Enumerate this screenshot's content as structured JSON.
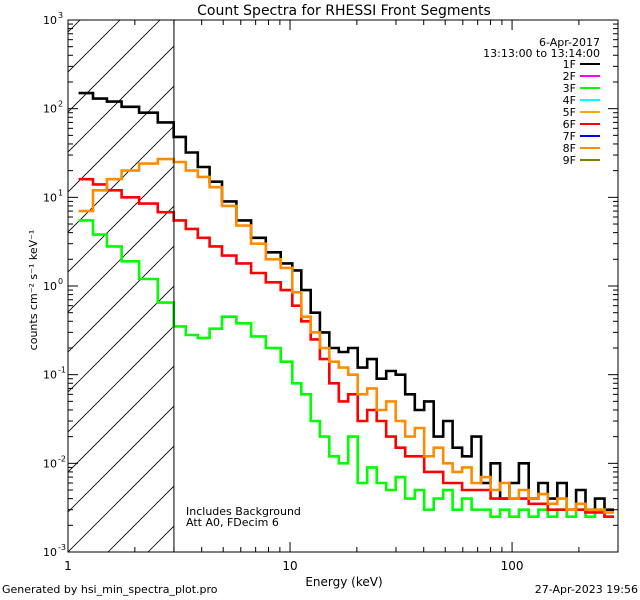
{
  "chart_data": {
    "type": "line",
    "title": "Count Spectra for RHESSI Front Segments",
    "xlabel": "Energy (keV)",
    "ylabel": "counts cm⁻² s⁻¹ keV⁻¹",
    "xscale": "log",
    "yscale": "log",
    "xlim": [
      1,
      300
    ],
    "ylim": [
      0.001,
      1000
    ],
    "x_ticks": [
      {
        "v": 1,
        "label": "1"
      },
      {
        "v": 10,
        "label": "10"
      },
      {
        "v": 100,
        "label": "100"
      }
    ],
    "y_ticks": [
      {
        "v": 0.001,
        "base": "10",
        "exp": "-3"
      },
      {
        "v": 0.01,
        "base": "10",
        "exp": "-2"
      },
      {
        "v": 0.1,
        "base": "10",
        "exp": "-1"
      },
      {
        "v": 1,
        "base": "10",
        "exp": "0"
      },
      {
        "v": 10,
        "base": "10",
        "exp": "1"
      },
      {
        "v": 100,
        "base": "10",
        "exp": "2"
      },
      {
        "v": 1000,
        "base": "10",
        "exp": "3"
      }
    ],
    "date": "6-Apr-2017",
    "time_range": "13:13:00 to 13:14:00",
    "shaded_region": {
      "x_from": 1,
      "x_to": 3
    },
    "annotations": [
      "Includes Background",
      "Att A0, FDecim 6"
    ],
    "legend_position": "top-right",
    "series": [
      {
        "name": "1F",
        "color": "#000000",
        "points": [
          [
            1.2,
            150
          ],
          [
            1.4,
            130
          ],
          [
            1.6,
            120
          ],
          [
            1.9,
            105
          ],
          [
            2.3,
            90
          ],
          [
            2.8,
            70
          ],
          [
            3.2,
            48
          ],
          [
            3.6,
            32
          ],
          [
            4.1,
            22
          ],
          [
            4.6,
            15
          ],
          [
            5.3,
            9
          ],
          [
            6.2,
            5.5
          ],
          [
            7.2,
            3.5
          ],
          [
            8.4,
            2.4
          ],
          [
            9.8,
            1.8
          ],
          [
            10.7,
            1.5
          ],
          [
            11.8,
            0.9
          ],
          [
            13.0,
            0.5
          ],
          [
            14.3,
            0.3
          ],
          [
            15.8,
            0.2
          ],
          [
            17.4,
            0.18
          ],
          [
            19.2,
            0.2
          ],
          [
            21.2,
            0.12
          ],
          [
            23.4,
            0.15
          ],
          [
            25.8,
            0.09
          ],
          [
            28.5,
            0.11
          ],
          [
            31.4,
            0.1
          ],
          [
            34.7,
            0.06
          ],
          [
            38.3,
            0.04
          ],
          [
            42.2,
            0.05
          ],
          [
            46.6,
            0.02
          ],
          [
            51.4,
            0.03
          ],
          [
            56.7,
            0.015
          ],
          [
            62.6,
            0.012
          ],
          [
            69.0,
            0.02
          ],
          [
            76.2,
            0.006
          ],
          [
            84.1,
            0.01
          ],
          [
            92.8,
            0.004
          ],
          [
            102,
            0.006
          ],
          [
            113,
            0.01
          ],
          [
            125,
            0.004
          ],
          [
            138,
            0.006
          ],
          [
            152,
            0.004
          ],
          [
            168,
            0.006
          ],
          [
            185,
            0.003
          ],
          [
            204,
            0.005
          ],
          [
            225,
            0.003
          ],
          [
            248,
            0.004
          ],
          [
            274,
            0.003
          ]
        ]
      },
      {
        "name": "2F",
        "color": "#ff00ff",
        "points": []
      },
      {
        "name": "3F",
        "color": "#00ff00",
        "points": [
          [
            1.2,
            5.5
          ],
          [
            1.4,
            3.8
          ],
          [
            1.6,
            2.8
          ],
          [
            1.9,
            1.9
          ],
          [
            2.3,
            1.2
          ],
          [
            2.8,
            0.65
          ],
          [
            3.2,
            0.35
          ],
          [
            3.6,
            0.28
          ],
          [
            4.1,
            0.26
          ],
          [
            4.6,
            0.33
          ],
          [
            5.3,
            0.45
          ],
          [
            6.2,
            0.38
          ],
          [
            7.2,
            0.27
          ],
          [
            8.4,
            0.2
          ],
          [
            9.8,
            0.14
          ],
          [
            10.7,
            0.08
          ],
          [
            11.8,
            0.06
          ],
          [
            13.0,
            0.03
          ],
          [
            14.3,
            0.02
          ],
          [
            15.8,
            0.012
          ],
          [
            17.4,
            0.01
          ],
          [
            19.2,
            0.02
          ],
          [
            21.2,
            0.006
          ],
          [
            23.4,
            0.009
          ],
          [
            25.8,
            0.006
          ],
          [
            28.5,
            0.005
          ],
          [
            31.4,
            0.007
          ],
          [
            34.7,
            0.004
          ],
          [
            38.3,
            0.005
          ],
          [
            42.2,
            0.003
          ],
          [
            46.6,
            0.004
          ],
          [
            51.4,
            0.005
          ],
          [
            56.7,
            0.003
          ],
          [
            62.6,
            0.004
          ],
          [
            69.0,
            0.003
          ],
          [
            76.2,
            0.003
          ],
          [
            84.1,
            0.0025
          ],
          [
            92.8,
            0.003
          ],
          [
            102,
            0.0025
          ],
          [
            113,
            0.003
          ],
          [
            125,
            0.0025
          ],
          [
            138,
            0.003
          ],
          [
            152,
            0.0025
          ],
          [
            168,
            0.003
          ],
          [
            185,
            0.0025
          ],
          [
            204,
            0.003
          ],
          [
            225,
            0.0025
          ],
          [
            248,
            0.003
          ],
          [
            274,
            0.0025
          ]
        ]
      },
      {
        "name": "4F",
        "color": "#00ffff",
        "points": []
      },
      {
        "name": "5F",
        "color": "#ffa500",
        "points": []
      },
      {
        "name": "6F",
        "color": "#ff0000",
        "points": [
          [
            1.2,
            16
          ],
          [
            1.4,
            14
          ],
          [
            1.6,
            12
          ],
          [
            1.9,
            10
          ],
          [
            2.3,
            8.5
          ],
          [
            2.8,
            6.8
          ],
          [
            3.2,
            5.5
          ],
          [
            3.6,
            4.4
          ],
          [
            4.1,
            3.5
          ],
          [
            4.6,
            2.8
          ],
          [
            5.3,
            2.2
          ],
          [
            6.2,
            1.8
          ],
          [
            7.2,
            1.4
          ],
          [
            8.4,
            1.1
          ],
          [
            9.8,
            0.9
          ],
          [
            10.7,
            0.6
          ],
          [
            11.8,
            0.4
          ],
          [
            13.0,
            0.25
          ],
          [
            14.3,
            0.15
          ],
          [
            15.8,
            0.08
          ],
          [
            17.4,
            0.05
          ],
          [
            19.2,
            0.06
          ],
          [
            21.2,
            0.03
          ],
          [
            23.4,
            0.04
          ],
          [
            25.8,
            0.03
          ],
          [
            28.5,
            0.02
          ],
          [
            31.4,
            0.015
          ],
          [
            34.7,
            0.012
          ],
          [
            38.3,
            0.012
          ],
          [
            42.2,
            0.008
          ],
          [
            46.6,
            0.008
          ],
          [
            51.4,
            0.006
          ],
          [
            56.7,
            0.006
          ],
          [
            62.6,
            0.005
          ],
          [
            69.0,
            0.005
          ],
          [
            76.2,
            0.005
          ],
          [
            84.1,
            0.004
          ],
          [
            92.8,
            0.004
          ],
          [
            102,
            0.004
          ],
          [
            113,
            0.004
          ],
          [
            125,
            0.0035
          ],
          [
            138,
            0.0035
          ],
          [
            152,
            0.003
          ],
          [
            168,
            0.003
          ],
          [
            185,
            0.003
          ],
          [
            204,
            0.003
          ],
          [
            225,
            0.0028
          ],
          [
            248,
            0.0028
          ],
          [
            274,
            0.0025
          ]
        ]
      },
      {
        "name": "7F",
        "color": "#0000ff",
        "points": []
      },
      {
        "name": "8F",
        "color": "#ff8c00",
        "points": [
          [
            1.2,
            7
          ],
          [
            1.4,
            12
          ],
          [
            1.6,
            16
          ],
          [
            1.9,
            20
          ],
          [
            2.3,
            24
          ],
          [
            2.8,
            27
          ],
          [
            3.2,
            25
          ],
          [
            3.6,
            20
          ],
          [
            4.1,
            17
          ],
          [
            4.6,
            13
          ],
          [
            5.3,
            8
          ],
          [
            6.2,
            4.8
          ],
          [
            7.2,
            3
          ],
          [
            8.4,
            2
          ],
          [
            9.8,
            1.6
          ],
          [
            10.7,
            0.85
          ],
          [
            11.8,
            0.45
          ],
          [
            13.0,
            0.3
          ],
          [
            14.3,
            0.2
          ],
          [
            15.8,
            0.14
          ],
          [
            17.4,
            0.12
          ],
          [
            19.2,
            0.1
          ],
          [
            21.2,
            0.06
          ],
          [
            23.4,
            0.07
          ],
          [
            25.8,
            0.04
          ],
          [
            28.5,
            0.05
          ],
          [
            31.4,
            0.03
          ],
          [
            34.7,
            0.02
          ],
          [
            38.3,
            0.025
          ],
          [
            42.2,
            0.012
          ],
          [
            46.6,
            0.015
          ],
          [
            51.4,
            0.01
          ],
          [
            56.7,
            0.008
          ],
          [
            62.6,
            0.009
          ],
          [
            69.0,
            0.006
          ],
          [
            76.2,
            0.007
          ],
          [
            84.1,
            0.005
          ],
          [
            92.8,
            0.006
          ],
          [
            102,
            0.004
          ],
          [
            113,
            0.005
          ],
          [
            125,
            0.004
          ],
          [
            138,
            0.0045
          ],
          [
            152,
            0.0035
          ],
          [
            168,
            0.004
          ],
          [
            185,
            0.003
          ],
          [
            204,
            0.0035
          ],
          [
            225,
            0.003
          ],
          [
            248,
            0.003
          ],
          [
            274,
            0.0028
          ]
        ]
      },
      {
        "name": "9F",
        "color": "#808000",
        "points": []
      }
    ]
  },
  "footer": {
    "left": "Generated by hsi_min_spectra_plot.pro",
    "right": "27-Apr-2023 19:56"
  }
}
